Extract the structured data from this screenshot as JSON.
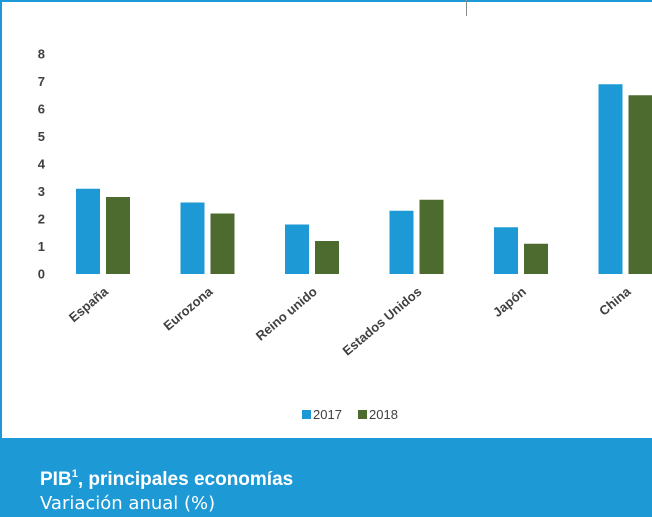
{
  "chart_data": {
    "type": "bar",
    "categories": [
      "España",
      "Eurozona",
      "Reino unido",
      "Estados Unidos",
      "Japón",
      "China"
    ],
    "series": [
      {
        "name": "2017",
        "values": [
          3.1,
          2.6,
          1.8,
          2.3,
          1.7,
          6.9
        ],
        "color": "#1d9ad6"
      },
      {
        "name": "2018",
        "values": [
          2.8,
          2.2,
          1.2,
          2.7,
          1.1,
          6.5
        ],
        "color": "#4e6b2f"
      }
    ],
    "ylim": [
      0,
      8
    ],
    "yticks": [
      "0",
      "1",
      "2",
      "3",
      "4",
      "5",
      "6",
      "7",
      "8"
    ],
    "grid": false,
    "legend": "bottom-center"
  },
  "footer": {
    "title": "PIB",
    "title_sup": "1",
    "title_rest": ", principales economías",
    "subtitle": "Variación anual (%)"
  },
  "colors": {
    "accent": "#1d9ad6",
    "series2": "#4e6b2f"
  }
}
